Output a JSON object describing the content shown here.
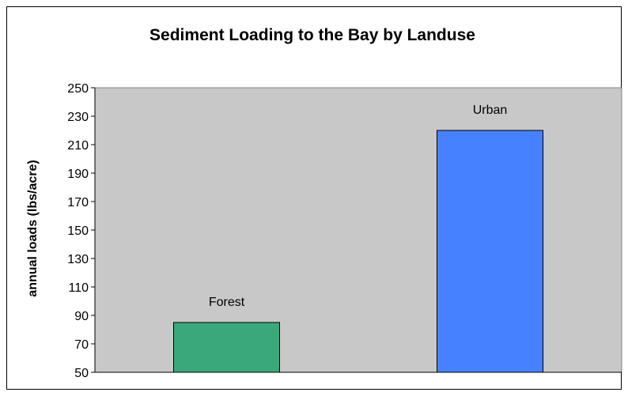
{
  "chart_data": {
    "type": "bar",
    "title": "Sediment Loading to the Bay by Landuse",
    "xlabel": "",
    "ylabel": "annual loads  (lbs/acre)",
    "categories": [
      "Forest",
      "Urban"
    ],
    "values": [
      85,
      220
    ],
    "ylim": [
      50,
      250
    ],
    "yticks": [
      50,
      70,
      90,
      110,
      130,
      150,
      170,
      190,
      210,
      230,
      250
    ],
    "bar_colors": [
      "#3aa87a",
      "#4682ff"
    ],
    "plot_background": "#c8c8c8",
    "grid": false,
    "legend": "none"
  }
}
